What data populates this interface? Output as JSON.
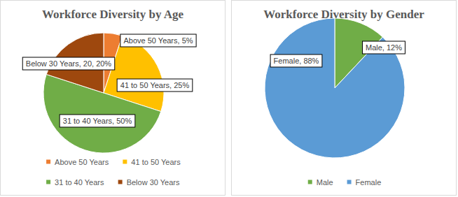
{
  "chart_data": [
    {
      "type": "pie",
      "title": "Workforce Diversity by Age",
      "categories": [
        "Above 50 Years",
        "41 to 50 Years",
        "31 to 40 Years",
        "Below 30 Years"
      ],
      "values": [
        5,
        25,
        50,
        20
      ],
      "value_labels": [
        "Above 50 Years, 5%",
        "41 to 50 Years, 25%",
        "31 to 40 Years, 50%",
        "Below 30 Years, 20, 20%"
      ],
      "colors": [
        "#ed7d31",
        "#ffc000",
        "#70ad47",
        "#9e480e"
      ],
      "data_labels": true,
      "legend": "bottom"
    },
    {
      "type": "pie",
      "title": "Workforce Diversity by Gender",
      "categories": [
        "Male",
        "Female"
      ],
      "values": [
        12,
        88
      ],
      "value_labels": [
        "Male, 12%",
        "Female, 88%"
      ],
      "colors": [
        "#70ad47",
        "#5b9bd5"
      ],
      "data_labels": true,
      "legend": "bottom"
    }
  ]
}
